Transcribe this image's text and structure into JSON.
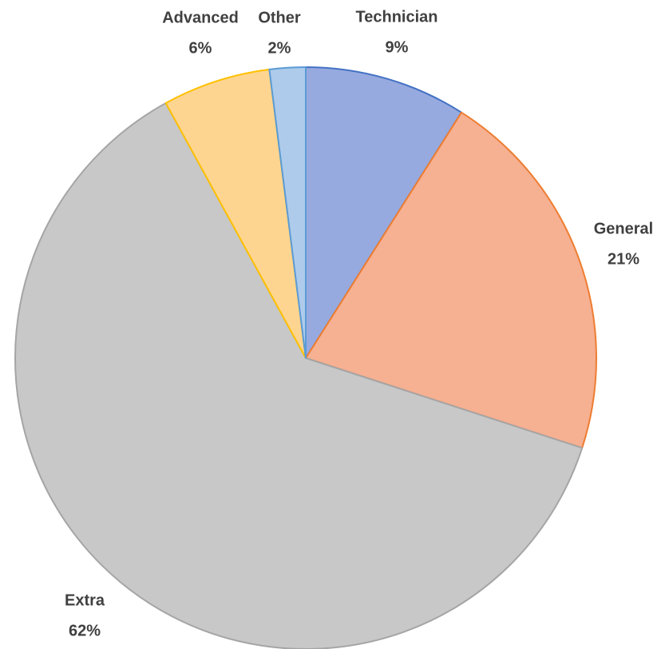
{
  "chart_data": {
    "type": "pie",
    "categories": [
      "Technician",
      "General",
      "Extra",
      "Advanced",
      "Other"
    ],
    "values": [
      9,
      21,
      62,
      6,
      2
    ],
    "value_labels": [
      "9%",
      "21%",
      "62%",
      "6%",
      "2%"
    ],
    "colors": [
      "#97aadf",
      "#f6b092",
      "#c8c8c8",
      "#fed590",
      "#aecbeb"
    ],
    "edge_colors": [
      "#4472c4",
      "#ed7d31",
      "#a5a5a5",
      "#ffc000",
      "#5b9bd5"
    ]
  }
}
